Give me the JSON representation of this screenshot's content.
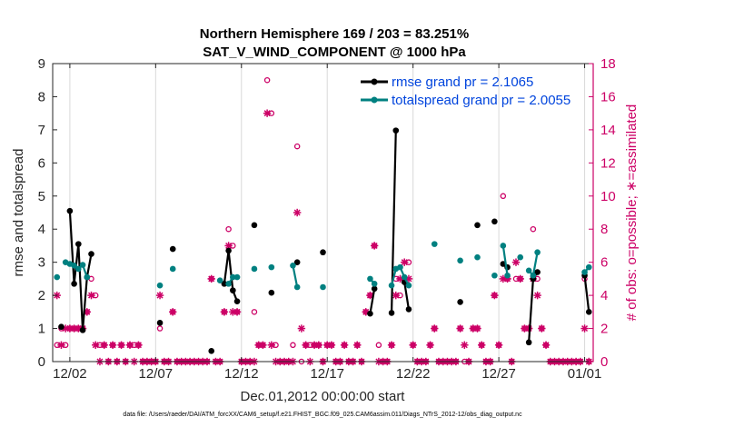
{
  "colors": {
    "rmse": "#000000",
    "spread": "#008080",
    "obs": "#cc0066",
    "legend_text": "#0044dd",
    "grid": "#d9d9d9"
  },
  "chart_data": {
    "type": "line",
    "title": "Northern Hemisphere 169 / 203 = 83.251%",
    "subtitle": "SAT_V_WIND_COMPONENT @ 1000 hPa",
    "xlabel": "Dec.01,2012 00:00:00 start",
    "ylabel": "rmse and totalspread",
    "y2label": "# of obs: o=possible; ∗=assimilated",
    "footnote": "data file: /Users/raeder/DAI/ATM_forcXX/CAM6_setup/f.e21.FHIST_BGC.f09_025.CAM6assim.011/Diags_NTrS_2012-12/obs_diag_output.nc",
    "xlim": [
      0.5,
      32
    ],
    "ylim": [
      0,
      9
    ],
    "y2lim": [
      0,
      18
    ],
    "x_ticks": [
      1.5,
      6.5,
      11.5,
      16.5,
      21.5,
      26.5,
      31.5
    ],
    "x_tick_labels": [
      "12/02",
      "12/07",
      "12/12",
      "12/17",
      "12/22",
      "12/27",
      "01/01"
    ],
    "y_ticks": [
      0,
      1,
      2,
      3,
      4,
      5,
      6,
      7,
      8,
      9
    ],
    "y2_ticks": [
      0,
      2,
      4,
      6,
      8,
      10,
      12,
      14,
      16,
      18
    ],
    "legend": {
      "position": "top-right",
      "entries": [
        "rmse grand pr = 2.1065",
        "totalspread grand pr = 2.0055"
      ]
    },
    "series": [
      {
        "name": "rmse grand pr = 2.1065",
        "marker": "dot",
        "segments": [
          [
            [
              1.0,
              1.05
            ]
          ],
          [
            [
              1.5,
              4.55
            ],
            [
              1.75,
              2.35
            ],
            [
              2.0,
              3.55
            ],
            [
              2.25,
              0.95
            ],
            [
              2.5,
              2.55
            ],
            [
              2.75,
              3.25
            ]
          ],
          [
            [
              6.75,
              1.17
            ]
          ],
          [
            [
              7.5,
              3.4
            ]
          ],
          [
            [
              9.75,
              0.32
            ]
          ],
          [
            [
              10.5,
              2.35
            ],
            [
              10.75,
              3.35
            ],
            [
              11.0,
              2.15
            ],
            [
              11.25,
              1.82
            ]
          ],
          [
            [
              12.25,
              4.12
            ]
          ],
          [
            [
              13.25,
              2.08
            ]
          ],
          [
            [
              14.75,
              3.0
            ]
          ],
          [
            [
              16.25,
              3.3
            ]
          ],
          [
            [
              19.0,
              1.45
            ],
            [
              19.25,
              2.2
            ]
          ],
          [
            [
              20.25,
              1.47
            ],
            [
              20.5,
              6.98
            ]
          ],
          [
            [
              21.0,
              2.4
            ],
            [
              21.25,
              1.58
            ]
          ],
          [
            [
              24.25,
              1.8
            ]
          ],
          [
            [
              25.25,
              4.12
            ]
          ],
          [
            [
              26.25,
              4.23
            ]
          ],
          [
            [
              26.75,
              2.95
            ],
            [
              27.0,
              2.85
            ]
          ],
          [
            [
              28.25,
              0.58
            ],
            [
              28.5,
              2.5
            ],
            [
              28.75,
              2.7
            ]
          ],
          [
            [
              31.5,
              2.6
            ],
            [
              31.75,
              1.5
            ]
          ]
        ]
      },
      {
        "name": "totalspread grand pr = 2.0055",
        "marker": "dot",
        "segments": [
          [
            [
              0.75,
              2.55
            ]
          ],
          [
            [
              1.25,
              3.0
            ],
            [
              1.5,
              2.95
            ],
            [
              1.75,
              2.9
            ],
            [
              2.0,
              2.8
            ],
            [
              2.25,
              2.92
            ],
            [
              2.5,
              2.55
            ]
          ],
          [
            [
              6.75,
              2.3
            ]
          ],
          [
            [
              7.5,
              2.8
            ]
          ],
          [
            [
              10.25,
              2.45
            ]
          ],
          [
            [
              10.75,
              2.35
            ],
            [
              11.0,
              2.55
            ],
            [
              11.25,
              2.55
            ]
          ],
          [
            [
              12.25,
              2.8
            ]
          ],
          [
            [
              13.25,
              2.85
            ]
          ],
          [
            [
              14.5,
              2.9
            ],
            [
              14.75,
              2.25
            ]
          ],
          [
            [
              16.25,
              2.25
            ]
          ],
          [
            [
              19.0,
              2.5
            ],
            [
              19.25,
              2.35
            ]
          ],
          [
            [
              20.25,
              2.3
            ],
            [
              20.5,
              2.8
            ]
          ],
          [
            [
              20.75,
              2.85
            ],
            [
              21.0,
              2.55
            ],
            [
              21.25,
              2.3
            ]
          ],
          [
            [
              22.75,
              3.55
            ]
          ],
          [
            [
              24.25,
              3.05
            ]
          ],
          [
            [
              25.25,
              3.15
            ]
          ],
          [
            [
              26.25,
              2.6
            ]
          ],
          [
            [
              26.75,
              3.5
            ],
            [
              27.0,
              2.6
            ]
          ],
          [
            [
              27.75,
              3.15
            ]
          ],
          [
            [
              28.25,
              2.75
            ],
            [
              28.5,
              2.6
            ],
            [
              28.75,
              3.3
            ]
          ],
          [
            [
              31.5,
              2.7
            ],
            [
              31.75,
              2.85
            ]
          ]
        ]
      }
    ],
    "obs_possible": {
      "name": "possible",
      "marker": "circle",
      "points": [
        [
          0.75,
          1
        ],
        [
          1.0,
          2
        ],
        [
          1.25,
          1
        ],
        [
          1.5,
          2
        ],
        [
          1.75,
          2
        ],
        [
          2.0,
          2
        ],
        [
          2.25,
          2
        ],
        [
          2.5,
          3
        ],
        [
          2.75,
          5
        ],
        [
          3.0,
          4
        ],
        [
          3.25,
          1
        ],
        [
          3.5,
          1
        ],
        [
          3.75,
          0
        ],
        [
          4.0,
          1
        ],
        [
          4.25,
          0
        ],
        [
          4.5,
          1
        ],
        [
          4.75,
          0
        ],
        [
          5.0,
          1
        ],
        [
          5.25,
          1
        ],
        [
          5.5,
          1
        ],
        [
          5.75,
          0
        ],
        [
          6.0,
          0
        ],
        [
          6.25,
          0
        ],
        [
          6.5,
          0
        ],
        [
          6.75,
          2
        ],
        [
          7.0,
          0
        ],
        [
          7.25,
          0
        ],
        [
          7.5,
          3
        ],
        [
          7.75,
          0
        ],
        [
          8.0,
          0
        ],
        [
          8.25,
          0
        ],
        [
          8.5,
          0
        ],
        [
          8.75,
          0
        ],
        [
          9.0,
          0
        ],
        [
          9.25,
          0
        ],
        [
          9.5,
          0
        ],
        [
          9.75,
          5
        ],
        [
          10.0,
          0
        ],
        [
          10.25,
          0
        ],
        [
          10.5,
          3
        ],
        [
          10.75,
          8
        ],
        [
          11.0,
          7
        ],
        [
          11.25,
          3
        ],
        [
          11.5,
          0
        ],
        [
          11.75,
          0
        ],
        [
          12.0,
          0
        ],
        [
          12.25,
          3
        ],
        [
          12.5,
          1
        ],
        [
          12.75,
          1
        ],
        [
          13.0,
          17
        ],
        [
          13.25,
          15
        ],
        [
          13.5,
          1
        ],
        [
          13.75,
          0
        ],
        [
          14.0,
          0
        ],
        [
          14.25,
          0
        ],
        [
          14.5,
          1
        ],
        [
          14.75,
          13
        ],
        [
          15.0,
          0
        ],
        [
          15.25,
          1
        ],
        [
          15.5,
          1
        ],
        [
          15.75,
          1
        ],
        [
          16.0,
          1
        ],
        [
          16.25,
          0
        ],
        [
          16.5,
          1
        ],
        [
          16.75,
          1
        ],
        [
          17.0,
          0
        ],
        [
          17.25,
          0
        ],
        [
          17.5,
          1
        ],
        [
          17.75,
          0
        ],
        [
          18.0,
          0
        ],
        [
          18.25,
          1
        ],
        [
          18.5,
          0
        ],
        [
          18.75,
          3
        ],
        [
          19.0,
          4
        ],
        [
          19.25,
          7
        ],
        [
          19.5,
          1
        ],
        [
          19.75,
          0
        ],
        [
          20.0,
          0
        ],
        [
          20.25,
          1
        ],
        [
          20.5,
          5
        ],
        [
          20.75,
          4
        ],
        [
          21.0,
          5
        ],
        [
          21.25,
          6
        ],
        [
          21.5,
          1
        ],
        [
          21.75,
          0
        ],
        [
          22.0,
          0
        ],
        [
          22.25,
          0
        ],
        [
          22.5,
          1
        ],
        [
          22.75,
          2
        ],
        [
          23.0,
          0
        ],
        [
          23.25,
          0
        ],
        [
          23.5,
          0
        ],
        [
          23.75,
          0
        ],
        [
          24.0,
          0
        ],
        [
          24.25,
          2
        ],
        [
          24.5,
          0
        ],
        [
          24.75,
          0
        ],
        [
          25.0,
          2
        ],
        [
          25.25,
          2
        ],
        [
          25.5,
          1
        ],
        [
          25.75,
          0
        ],
        [
          26.0,
          0
        ],
        [
          26.25,
          4
        ],
        [
          26.5,
          1
        ],
        [
          26.75,
          10
        ],
        [
          27.0,
          5
        ],
        [
          27.25,
          0
        ],
        [
          27.5,
          5
        ],
        [
          27.75,
          5
        ],
        [
          28.0,
          2
        ],
        [
          28.25,
          2
        ],
        [
          28.5,
          8
        ],
        [
          28.75,
          5
        ],
        [
          29.0,
          2
        ],
        [
          29.25,
          1
        ],
        [
          29.5,
          0
        ],
        [
          29.75,
          0
        ],
        [
          30.0,
          0
        ],
        [
          30.25,
          0
        ],
        [
          30.5,
          0
        ],
        [
          30.75,
          0
        ],
        [
          31.0,
          0
        ],
        [
          31.25,
          0
        ],
        [
          31.5,
          5
        ],
        [
          31.75,
          0
        ]
      ]
    },
    "obs_assimilated": {
      "name": "assimilated",
      "marker": "asterisk",
      "points": [
        [
          0.75,
          4
        ],
        [
          1.0,
          1
        ],
        [
          1.25,
          2
        ],
        [
          1.5,
          2
        ],
        [
          1.75,
          2
        ],
        [
          2.0,
          2
        ],
        [
          2.25,
          2
        ],
        [
          2.5,
          3
        ],
        [
          2.75,
          4
        ],
        [
          3.0,
          1
        ],
        [
          3.25,
          0
        ],
        [
          3.5,
          1
        ],
        [
          3.75,
          0
        ],
        [
          4.0,
          1
        ],
        [
          4.25,
          0
        ],
        [
          4.5,
          1
        ],
        [
          4.75,
          0
        ],
        [
          5.0,
          1
        ],
        [
          5.25,
          0
        ],
        [
          5.5,
          1
        ],
        [
          5.75,
          0
        ],
        [
          6.0,
          0
        ],
        [
          6.25,
          0
        ],
        [
          6.5,
          0
        ],
        [
          6.75,
          4
        ],
        [
          7.0,
          0
        ],
        [
          7.25,
          0
        ],
        [
          7.5,
          3
        ],
        [
          7.75,
          0
        ],
        [
          8.0,
          0
        ],
        [
          8.25,
          0
        ],
        [
          8.5,
          0
        ],
        [
          8.75,
          0
        ],
        [
          9.0,
          0
        ],
        [
          9.25,
          0
        ],
        [
          9.5,
          0
        ],
        [
          9.75,
          5
        ],
        [
          10.0,
          0
        ],
        [
          10.25,
          0
        ],
        [
          10.5,
          3
        ],
        [
          10.75,
          7
        ],
        [
          11.0,
          3
        ],
        [
          11.25,
          3
        ],
        [
          11.5,
          0
        ],
        [
          11.75,
          0
        ],
        [
          12.0,
          0
        ],
        [
          12.25,
          0
        ],
        [
          12.5,
          1
        ],
        [
          12.75,
          1
        ],
        [
          13.0,
          15
        ],
        [
          13.25,
          1
        ],
        [
          13.5,
          0
        ],
        [
          13.75,
          0
        ],
        [
          14.0,
          0
        ],
        [
          14.25,
          0
        ],
        [
          14.5,
          0
        ],
        [
          14.75,
          9
        ],
        [
          15.0,
          2
        ],
        [
          15.25,
          1
        ],
        [
          15.5,
          0
        ],
        [
          15.75,
          1
        ],
        [
          16.0,
          1
        ],
        [
          16.25,
          0
        ],
        [
          16.5,
          1
        ],
        [
          16.75,
          1
        ],
        [
          17.0,
          0
        ],
        [
          17.25,
          0
        ],
        [
          17.5,
          1
        ],
        [
          17.75,
          0
        ],
        [
          18.0,
          0
        ],
        [
          18.25,
          1
        ],
        [
          18.5,
          0
        ],
        [
          18.75,
          3
        ],
        [
          19.0,
          4
        ],
        [
          19.25,
          7
        ],
        [
          19.5,
          0
        ],
        [
          19.75,
          0
        ],
        [
          20.0,
          0
        ],
        [
          20.25,
          1
        ],
        [
          20.5,
          4
        ],
        [
          20.75,
          5
        ],
        [
          21.0,
          6
        ],
        [
          21.25,
          5
        ],
        [
          21.5,
          1
        ],
        [
          21.75,
          0
        ],
        [
          22.0,
          0
        ],
        [
          22.25,
          0
        ],
        [
          22.5,
          1
        ],
        [
          22.75,
          2
        ],
        [
          23.0,
          0
        ],
        [
          23.25,
          0
        ],
        [
          23.5,
          0
        ],
        [
          23.75,
          0
        ],
        [
          24.0,
          0
        ],
        [
          24.25,
          2
        ],
        [
          24.5,
          1
        ],
        [
          24.75,
          0
        ],
        [
          25.0,
          2
        ],
        [
          25.25,
          2
        ],
        [
          25.5,
          1
        ],
        [
          25.75,
          0
        ],
        [
          26.0,
          0
        ],
        [
          26.25,
          4
        ],
        [
          26.5,
          1
        ],
        [
          26.75,
          5
        ],
        [
          27.0,
          5
        ],
        [
          27.25,
          0
        ],
        [
          27.5,
          6
        ],
        [
          27.75,
          5
        ],
        [
          28.0,
          2
        ],
        [
          28.25,
          2
        ],
        [
          28.5,
          5
        ],
        [
          28.75,
          4
        ],
        [
          29.0,
          2
        ],
        [
          29.25,
          1
        ],
        [
          29.5,
          0
        ],
        [
          29.75,
          0
        ],
        [
          30.0,
          0
        ],
        [
          30.25,
          0
        ],
        [
          30.5,
          0
        ],
        [
          30.75,
          0
        ],
        [
          31.0,
          0
        ],
        [
          31.25,
          0
        ],
        [
          31.5,
          2
        ],
        [
          31.75,
          0
        ]
      ]
    }
  }
}
